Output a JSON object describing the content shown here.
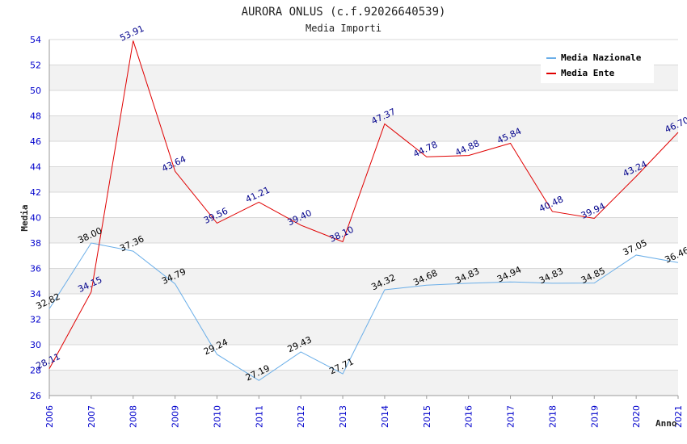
{
  "chart_data": {
    "type": "line",
    "title": "AURORA ONLUS (c.f.92026640539)",
    "subtitle": "Media Importi",
    "xlabel": "Anno",
    "ylabel": "Media",
    "ylim": [
      26,
      54
    ],
    "ytick_step": 2,
    "grid": true,
    "legend_position": "top-right",
    "categories": [
      "2006",
      "2007",
      "2008",
      "2009",
      "2010",
      "2011",
      "2012",
      "2013",
      "2014",
      "2015",
      "2016",
      "2017",
      "2018",
      "2019",
      "2020",
      "2021"
    ],
    "series": [
      {
        "name": "Media Nazionale",
        "color": "#6aaee8",
        "label_color": "#000000",
        "values": [
          32.82,
          38.0,
          37.36,
          34.79,
          29.24,
          27.19,
          29.43,
          27.71,
          34.32,
          34.68,
          34.83,
          34.94,
          34.83,
          34.85,
          37.05,
          36.46
        ],
        "labels": [
          "32.82",
          "38.00",
          "37.36",
          "34.79",
          "29.24",
          "27.19",
          "29.43",
          "27.71",
          "34.32",
          "34.68",
          "34.83",
          "34.94",
          "34.83",
          "34.85",
          "37.05",
          "36.46"
        ]
      },
      {
        "name": "Media Ente",
        "color": "#e00000",
        "label_color": "#00008b",
        "values": [
          28.11,
          34.15,
          53.91,
          43.64,
          39.56,
          41.21,
          39.4,
          38.1,
          47.37,
          44.78,
          44.88,
          45.84,
          40.48,
          39.94,
          43.24,
          46.7
        ],
        "labels": [
          "28.11",
          "34.15",
          "53.91",
          "43.64",
          "39.56",
          "41.21",
          "39.40",
          "38.10",
          "47.37",
          "44.78",
          "44.88",
          "45.84",
          "40.48",
          "39.94",
          "43.24",
          "46.70"
        ]
      }
    ],
    "colors": {
      "tick_text": "#0000cc",
      "grid": "#d8d8d8",
      "band": "#f2f2f2",
      "axis": "#999999"
    }
  }
}
